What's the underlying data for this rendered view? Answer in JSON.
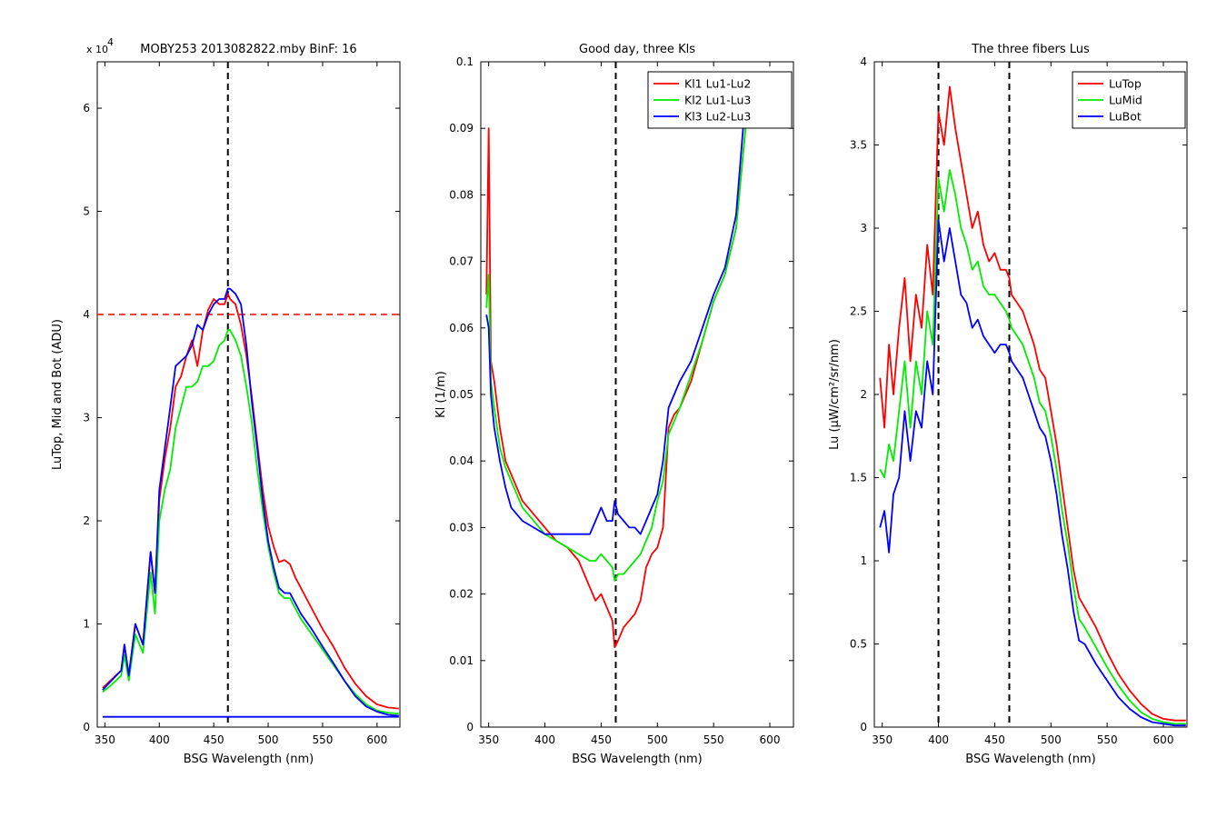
{
  "colors": {
    "red": "#ff0000",
    "green": "#00ee00",
    "blue": "#0000ff",
    "black": "#000000"
  },
  "chart_data": [
    {
      "type": "line",
      "title": "MOBY253  2013082822.mby BinF: 16",
      "xlabel": "BSG Wavelength (nm)",
      "ylabel": "LuTop, Mid and Bot (ADU)",
      "exponent_label": "x 10",
      "exponent_power": "4",
      "xlim": [
        343,
        621
      ],
      "ylim": [
        0,
        6.45
      ],
      "xticks": [
        350,
        400,
        450,
        500,
        550,
        600
      ],
      "yticks": [
        0,
        1,
        2,
        3,
        4,
        5,
        6
      ],
      "grid": false,
      "vline_x": 463,
      "hline_y": 4,
      "legend": [],
      "series": [
        {
          "color": "red",
          "x": [
            348,
            355,
            365,
            368,
            372,
            378,
            385,
            392,
            396,
            400,
            405,
            410,
            415,
            420,
            425,
            430,
            435,
            440,
            445,
            450,
            455,
            460,
            463,
            465,
            470,
            475,
            480,
            485,
            490,
            495,
            500,
            505,
            510,
            515,
            520,
            525,
            530,
            540,
            550,
            560,
            570,
            580,
            590,
            600,
            610,
            620
          ],
          "y": [
            0.38,
            0.45,
            0.55,
            0.8,
            0.5,
            1.0,
            0.8,
            1.7,
            1.3,
            2.2,
            2.6,
            2.9,
            3.3,
            3.4,
            3.6,
            3.75,
            3.5,
            3.85,
            4.05,
            4.15,
            4.1,
            4.1,
            4.2,
            4.15,
            4.1,
            3.9,
            3.6,
            3.2,
            2.75,
            2.3,
            1.95,
            1.75,
            1.6,
            1.62,
            1.58,
            1.45,
            1.35,
            1.15,
            0.95,
            0.78,
            0.58,
            0.42,
            0.3,
            0.22,
            0.19,
            0.18
          ]
        },
        {
          "color": "green",
          "x": [
            348,
            355,
            365,
            368,
            372,
            378,
            385,
            392,
            396,
            400,
            405,
            410,
            415,
            420,
            425,
            430,
            435,
            440,
            445,
            450,
            455,
            460,
            463,
            465,
            470,
            475,
            480,
            485,
            490,
            495,
            500,
            505,
            510,
            515,
            520,
            525,
            530,
            540,
            550,
            560,
            570,
            580,
            590,
            600,
            610,
            620
          ],
          "y": [
            0.34,
            0.4,
            0.5,
            0.7,
            0.45,
            0.9,
            0.72,
            1.5,
            1.1,
            2.0,
            2.3,
            2.5,
            2.9,
            3.1,
            3.3,
            3.3,
            3.35,
            3.5,
            3.5,
            3.55,
            3.7,
            3.75,
            3.85,
            3.85,
            3.75,
            3.6,
            3.3,
            2.95,
            2.5,
            2.1,
            1.75,
            1.5,
            1.3,
            1.25,
            1.25,
            1.15,
            1.05,
            0.9,
            0.75,
            0.6,
            0.45,
            0.32,
            0.22,
            0.16,
            0.14,
            0.13
          ]
        },
        {
          "color": "blue",
          "x": [
            348,
            355,
            365,
            368,
            372,
            378,
            385,
            392,
            396,
            400,
            405,
            410,
            415,
            420,
            425,
            430,
            435,
            440,
            445,
            450,
            455,
            460,
            463,
            465,
            470,
            475,
            480,
            485,
            490,
            495,
            500,
            505,
            510,
            515,
            520,
            525,
            530,
            540,
            550,
            560,
            570,
            580,
            590,
            600,
            610,
            620
          ],
          "y": [
            0.36,
            0.44,
            0.55,
            0.8,
            0.5,
            1.0,
            0.8,
            1.7,
            1.3,
            2.3,
            2.7,
            3.1,
            3.5,
            3.55,
            3.6,
            3.7,
            3.9,
            3.85,
            4.0,
            4.1,
            4.15,
            4.15,
            4.25,
            4.25,
            4.2,
            4.1,
            3.7,
            3.15,
            2.7,
            2.2,
            1.8,
            1.55,
            1.35,
            1.3,
            1.3,
            1.2,
            1.1,
            0.95,
            0.78,
            0.62,
            0.45,
            0.3,
            0.2,
            0.15,
            0.12,
            0.11
          ]
        },
        {
          "color": "blue",
          "x": [
            348,
            620
          ],
          "y": [
            0.1,
            0.1
          ]
        }
      ]
    },
    {
      "type": "line",
      "title": "Good day, three Kls",
      "xlabel": "BSG Wavelength (nm)",
      "ylabel": "Kl (1/m)",
      "xlim": [
        343,
        621
      ],
      "ylim": [
        0,
        0.1
      ],
      "xticks": [
        350,
        400,
        450,
        500,
        550,
        600
      ],
      "yticks": [
        0,
        0.01,
        0.02,
        0.03,
        0.04,
        0.05,
        0.06,
        0.07,
        0.08,
        0.09,
        0.1
      ],
      "grid": false,
      "vline_x": 463,
      "legend": [
        {
          "label": "Kl1 Lu1-Lu2",
          "color": "red"
        },
        {
          "label": "Kl2 Lu1-Lu3",
          "color": "green"
        },
        {
          "label": "Kl3 Lu2-Lu3",
          "color": "blue"
        }
      ],
      "series": [
        {
          "color": "red",
          "x": [
            348,
            350,
            352,
            355,
            360,
            365,
            370,
            375,
            380,
            390,
            400,
            410,
            420,
            430,
            440,
            445,
            450,
            455,
            460,
            462,
            465,
            470,
            475,
            480,
            485,
            490,
            495,
            500,
            505,
            510,
            515,
            520,
            530,
            540,
            550,
            560,
            570,
            580
          ],
          "y": [
            0.065,
            0.09,
            0.055,
            0.052,
            0.045,
            0.04,
            0.038,
            0.036,
            0.034,
            0.032,
            0.03,
            0.028,
            0.027,
            0.025,
            0.021,
            0.019,
            0.02,
            0.018,
            0.016,
            0.012,
            0.013,
            0.015,
            0.016,
            0.017,
            0.019,
            0.024,
            0.026,
            0.027,
            0.03,
            0.045,
            0.047,
            0.048,
            0.052,
            0.058,
            0.064,
            0.068,
            0.075,
            0.093
          ]
        },
        {
          "color": "green",
          "x": [
            348,
            350,
            352,
            355,
            360,
            365,
            370,
            375,
            380,
            390,
            400,
            410,
            420,
            430,
            440,
            445,
            450,
            455,
            460,
            462,
            465,
            470,
            475,
            480,
            485,
            490,
            495,
            500,
            505,
            510,
            515,
            520,
            530,
            540,
            550,
            560,
            570,
            580
          ],
          "y": [
            0.063,
            0.068,
            0.052,
            0.048,
            0.042,
            0.039,
            0.037,
            0.035,
            0.033,
            0.031,
            0.029,
            0.028,
            0.027,
            0.026,
            0.025,
            0.025,
            0.026,
            0.025,
            0.024,
            0.022,
            0.023,
            0.023,
            0.024,
            0.025,
            0.026,
            0.028,
            0.03,
            0.034,
            0.037,
            0.044,
            0.046,
            0.048,
            0.053,
            0.058,
            0.064,
            0.068,
            0.075,
            0.093
          ]
        },
        {
          "color": "blue",
          "x": [
            348,
            350,
            352,
            355,
            360,
            365,
            370,
            375,
            380,
            390,
            400,
            410,
            420,
            430,
            440,
            445,
            450,
            455,
            460,
            462,
            465,
            470,
            475,
            480,
            485,
            490,
            495,
            500,
            505,
            510,
            515,
            520,
            530,
            540,
            550,
            560,
            570,
            580
          ],
          "y": [
            0.062,
            0.06,
            0.05,
            0.045,
            0.04,
            0.036,
            0.033,
            0.032,
            0.031,
            0.03,
            0.029,
            0.029,
            0.029,
            0.029,
            0.029,
            0.031,
            0.033,
            0.031,
            0.031,
            0.034,
            0.032,
            0.031,
            0.03,
            0.03,
            0.029,
            0.031,
            0.033,
            0.035,
            0.04,
            0.048,
            0.05,
            0.052,
            0.055,
            0.06,
            0.065,
            0.069,
            0.077,
            0.098
          ]
        }
      ]
    },
    {
      "type": "line",
      "title": "The three fibers Lus",
      "xlabel": "BSG Wavelength (nm)",
      "ylabel": "Lu (µW/cm²/sr/nm)",
      "xlim": [
        343,
        621
      ],
      "ylim": [
        0,
        4
      ],
      "xticks": [
        350,
        400,
        450,
        500,
        550,
        600
      ],
      "yticks": [
        0,
        0.5,
        1,
        1.5,
        2,
        2.5,
        3,
        3.5,
        4
      ],
      "grid": false,
      "vlines_x": [
        400,
        463
      ],
      "legend": [
        {
          "label": "LuTop",
          "color": "red"
        },
        {
          "label": "LuMid",
          "color": "green"
        },
        {
          "label": "LuBot",
          "color": "blue"
        }
      ],
      "series": [
        {
          "color": "red",
          "x": [
            348,
            352,
            356,
            360,
            365,
            370,
            375,
            380,
            385,
            390,
            395,
            400,
            405,
            410,
            415,
            420,
            425,
            430,
            435,
            440,
            445,
            450,
            455,
            460,
            463,
            465,
            470,
            475,
            480,
            485,
            490,
            495,
            500,
            505,
            510,
            515,
            520,
            525,
            530,
            540,
            550,
            560,
            570,
            580,
            590,
            600,
            610,
            620
          ],
          "y": [
            2.1,
            1.8,
            2.3,
            2.0,
            2.4,
            2.7,
            2.2,
            2.6,
            2.4,
            2.9,
            2.6,
            3.7,
            3.5,
            3.85,
            3.6,
            3.4,
            3.2,
            3.0,
            3.1,
            2.9,
            2.8,
            2.85,
            2.75,
            2.75,
            2.7,
            2.6,
            2.55,
            2.5,
            2.4,
            2.3,
            2.15,
            2.1,
            1.9,
            1.7,
            1.45,
            1.2,
            0.95,
            0.78,
            0.72,
            0.6,
            0.45,
            0.32,
            0.22,
            0.14,
            0.08,
            0.05,
            0.04,
            0.04
          ]
        },
        {
          "color": "green",
          "x": [
            348,
            352,
            356,
            360,
            365,
            370,
            375,
            380,
            385,
            390,
            395,
            400,
            405,
            410,
            415,
            420,
            425,
            430,
            435,
            440,
            445,
            450,
            455,
            460,
            463,
            465,
            470,
            475,
            480,
            485,
            490,
            495,
            500,
            505,
            510,
            515,
            520,
            525,
            530,
            540,
            550,
            560,
            570,
            580,
            590,
            600,
            610,
            620
          ],
          "y": [
            1.55,
            1.5,
            1.7,
            1.6,
            1.9,
            2.2,
            1.8,
            2.2,
            2.0,
            2.5,
            2.3,
            3.3,
            3.1,
            3.35,
            3.2,
            3.0,
            2.9,
            2.75,
            2.8,
            2.65,
            2.6,
            2.6,
            2.55,
            2.5,
            2.45,
            2.4,
            2.35,
            2.3,
            2.2,
            2.1,
            1.95,
            1.9,
            1.75,
            1.55,
            1.3,
            1.1,
            0.85,
            0.65,
            0.6,
            0.48,
            0.36,
            0.25,
            0.16,
            0.09,
            0.05,
            0.03,
            0.02,
            0.02
          ]
        },
        {
          "color": "blue",
          "x": [
            348,
            352,
            356,
            360,
            365,
            370,
            375,
            380,
            385,
            390,
            395,
            400,
            405,
            410,
            415,
            420,
            425,
            430,
            435,
            440,
            445,
            450,
            455,
            460,
            463,
            465,
            470,
            475,
            480,
            485,
            490,
            495,
            500,
            505,
            510,
            515,
            520,
            525,
            530,
            540,
            550,
            560,
            570,
            580,
            590,
            600,
            610,
            620
          ],
          "y": [
            1.2,
            1.3,
            1.05,
            1.4,
            1.5,
            1.9,
            1.6,
            1.9,
            1.8,
            2.2,
            2.0,
            3.05,
            2.8,
            3.0,
            2.8,
            2.6,
            2.55,
            2.4,
            2.45,
            2.35,
            2.3,
            2.25,
            2.3,
            2.3,
            2.25,
            2.2,
            2.15,
            2.1,
            2.0,
            1.9,
            1.8,
            1.75,
            1.6,
            1.4,
            1.15,
            0.95,
            0.7,
            0.52,
            0.5,
            0.38,
            0.28,
            0.18,
            0.11,
            0.06,
            0.03,
            0.02,
            0.01,
            0.01
          ]
        }
      ]
    }
  ]
}
